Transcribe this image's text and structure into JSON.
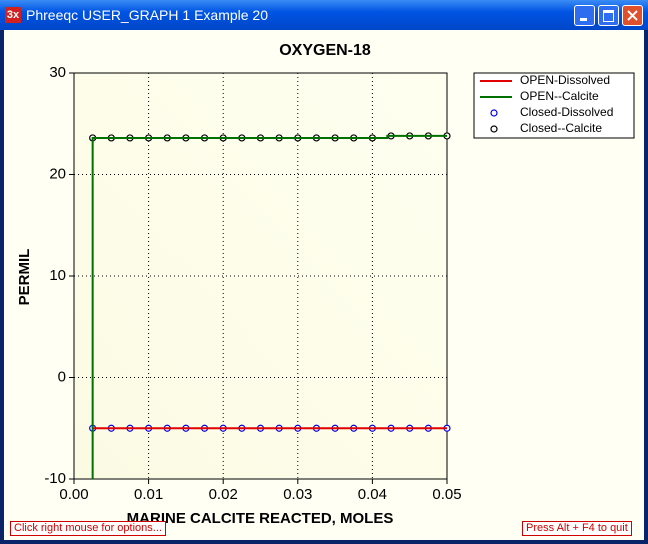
{
  "window": {
    "title": "Phreeqc USER_GRAPH 1 Example 20",
    "icon": "3x",
    "left_note": "Click right mouse for options...",
    "right_note": "Press Alt + F4 to quit"
  },
  "chart_data": {
    "type": "line",
    "title": "OXYGEN-18",
    "x_label": "MARINE CALCITE REACTED, MOLES",
    "y_label": "PERMIL",
    "xlim": [
      0,
      0.05
    ],
    "ylim": [
      -10,
      30
    ],
    "xticks": [
      {
        "value": 0,
        "label": "0.00"
      },
      0.01,
      0.02,
      0.03,
      0.04,
      0.05
    ],
    "yticks": [
      -10,
      0,
      10,
      20,
      30
    ],
    "grid": true,
    "legend": "outside-top-right",
    "series": [
      {
        "name": "OPEN-Dissolved",
        "color": "#e00000",
        "style": "line",
        "x": [
          0.0025,
          0.05
        ],
        "values": [
          -5,
          -5
        ]
      },
      {
        "name": "OPEN--Calcite",
        "color": "#007000",
        "style": "line",
        "x": [
          0.0025,
          0.0025,
          0.042,
          0.042,
          0.05
        ],
        "values": [
          -10,
          23.6,
          23.6,
          23.8,
          23.8
        ]
      },
      {
        "name": "Closed-Dissolved",
        "color": "#0000e0",
        "style": "circle",
        "x": [
          0.0025,
          0.005,
          0.0075,
          0.01,
          0.0125,
          0.015,
          0.0175,
          0.02,
          0.0225,
          0.025,
          0.0275,
          0.03,
          0.0325,
          0.035,
          0.0375,
          0.04,
          0.0425,
          0.045,
          0.0475,
          0.05
        ],
        "values": [
          -5,
          -5,
          -5,
          -5,
          -5,
          -5,
          -5,
          -5,
          -5,
          -5,
          -5,
          -5,
          -5,
          -5,
          -5,
          -5,
          -5,
          -5,
          -5,
          -5
        ]
      },
      {
        "name": "Closed--Calcite",
        "color": "#000000",
        "style": "circle",
        "x": [
          0.0025,
          0.005,
          0.0075,
          0.01,
          0.0125,
          0.015,
          0.0175,
          0.02,
          0.0225,
          0.025,
          0.0275,
          0.03,
          0.0325,
          0.035,
          0.0375,
          0.04,
          0.0425,
          0.045,
          0.0475,
          0.05
        ],
        "values": [
          23.6,
          23.6,
          23.6,
          23.6,
          23.6,
          23.6,
          23.6,
          23.6,
          23.6,
          23.6,
          23.6,
          23.6,
          23.6,
          23.6,
          23.6,
          23.6,
          23.8,
          23.8,
          23.8,
          23.8
        ]
      }
    ]
  }
}
